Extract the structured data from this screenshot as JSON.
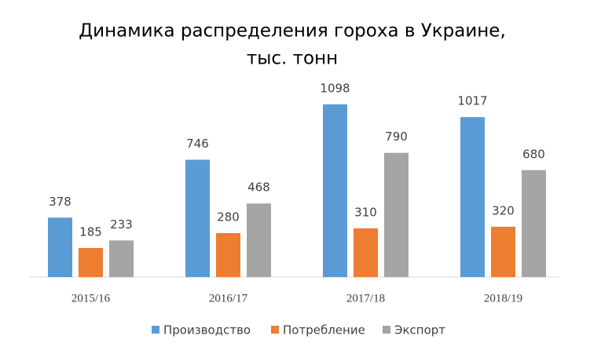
{
  "chart_data": {
    "type": "bar",
    "title": "Динамика распределения гороха в Украине,",
    "subtitle": "тыс. тонн",
    "categories": [
      "2015/16",
      "2016/17",
      "2017/18",
      "2018/19"
    ],
    "series": [
      {
        "name": "Производство",
        "color": "#5b9bd5",
        "values": [
          378,
          746,
          1098,
          1017
        ]
      },
      {
        "name": "Потребление",
        "color": "#ed7d31",
        "values": [
          185,
          280,
          310,
          320
        ]
      },
      {
        "name": "Экспорт",
        "color": "#a5a5a5",
        "values": [
          233,
          468,
          790,
          680
        ]
      }
    ],
    "legend": "bottom"
  }
}
